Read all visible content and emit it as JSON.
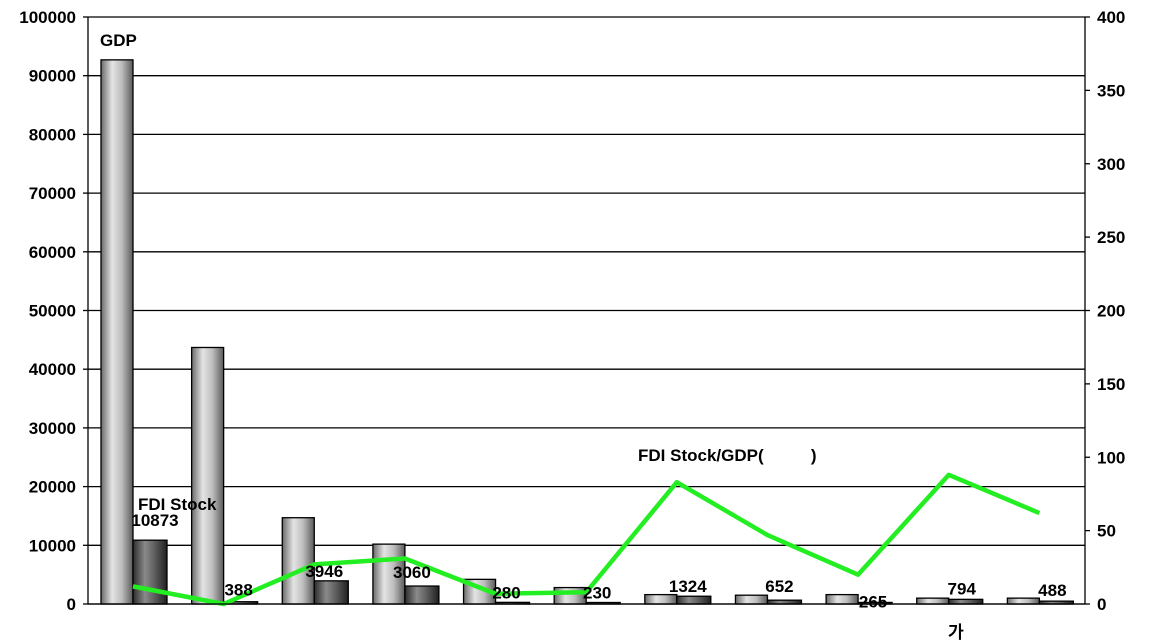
{
  "chart_data": {
    "type": "bar",
    "categories": [
      "",
      "",
      "",
      "",
      "",
      "",
      "",
      "",
      "",
      "",
      ""
    ],
    "series": [
      {
        "name": "GDP",
        "values": [
          92700,
          43700,
          14700,
          10200,
          4200,
          2800,
          1600,
          1500,
          1600,
          1000,
          1000
        ]
      },
      {
        "name": "FDI Stock",
        "values": [
          10873,
          388,
          3946,
          3060,
          280,
          230,
          1324,
          652,
          265,
          794,
          488
        ]
      },
      {
        "name": "FDI Stock/GDP(          )",
        "values": [
          12,
          0,
          27,
          31,
          7,
          8,
          83,
          47,
          20,
          88,
          62
        ]
      }
    ],
    "data_labels": [
      "10873",
      "388",
      "3946",
      "3060",
      "280",
      "230",
      "1324",
      "652",
      "265",
      "794",
      "488"
    ],
    "annotations": [
      "GDP",
      "FDI Stock",
      "FDI Stock/GDP(          )",
      "가"
    ],
    "y_left": {
      "ylim": [
        0,
        100000
      ],
      "ticks": [
        "0",
        "10000",
        "20000",
        "30000",
        "40000",
        "50000",
        "60000",
        "70000",
        "80000",
        "90000",
        "100000"
      ]
    },
    "y_right": {
      "ylim": [
        0,
        400
      ],
      "ticks": [
        "0",
        "50",
        "100",
        "150",
        "200",
        "250",
        "300",
        "350",
        "400"
      ]
    },
    "grid": true,
    "legend": "none",
    "colors": {
      "gdp_bar": "#9a9a9a",
      "fdi_bar": "#505050",
      "ratio_line": "#22ee22",
      "grid": "#000000"
    }
  }
}
